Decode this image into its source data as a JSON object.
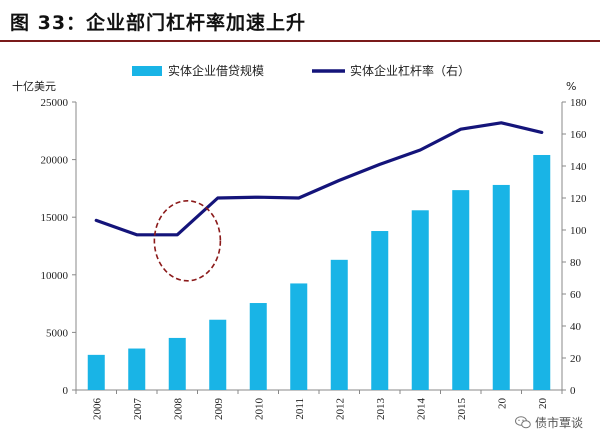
{
  "title": "图 33：企业部门杠杆率加速上升",
  "chart_data": {
    "type": "bar+line",
    "categories": [
      "2006",
      "2007",
      "2008",
      "2009",
      "2010",
      "2011",
      "2012",
      "2013",
      "2014",
      "2015",
      "20",
      "20"
    ],
    "series": [
      {
        "name": "实体企业借贷规模",
        "type": "bar",
        "axis": "left",
        "color": "#19b4e6",
        "values": [
          3050,
          3600,
          4520,
          6100,
          7550,
          9250,
          11300,
          13800,
          15600,
          17350,
          17800,
          20400
        ]
      },
      {
        "name": "实体企业杠杆率（右）",
        "type": "line",
        "axis": "right",
        "color": "#14147a",
        "values": [
          106,
          97,
          97,
          120,
          120.5,
          120,
          131,
          141,
          150,
          163,
          167,
          161
        ]
      }
    ],
    "y_left": {
      "unit": "十亿美元",
      "ylim": [
        0,
        25000
      ],
      "ticks": [
        0,
        5000,
        10000,
        15000,
        20000,
        25000
      ]
    },
    "y_right": {
      "unit": "%",
      "ylim": [
        0,
        180
      ],
      "ticks": [
        0,
        20,
        40,
        60,
        80,
        100,
        120,
        140,
        160,
        180
      ]
    },
    "legend_position": "top",
    "annotation": {
      "shape": "dashed-ellipse",
      "color": "#8b1a1a",
      "around_category": "2008"
    }
  },
  "watermark": {
    "text": "债市覃谈"
  }
}
